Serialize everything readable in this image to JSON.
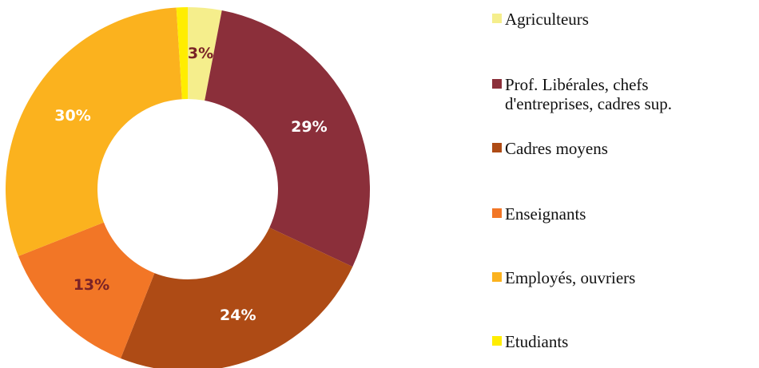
{
  "chart_data": {
    "type": "donut",
    "categories": [
      "Agriculteurs",
      "Prof. Libérales, chefs d'entreprises, cadres sup.",
      "Cadres moyens",
      "Enseignants",
      "Employés, ouvriers",
      "Etudiants"
    ],
    "series": [
      {
        "values": [
          3,
          29,
          24,
          13,
          30,
          1
        ],
        "value_labels": [
          "3%",
          "29%",
          "24%",
          "13%",
          "30%",
          null
        ],
        "colors": [
          "#f5ee8c",
          "#8b2f3a",
          "#ae4b15",
          "#f27626",
          "#fbb21e",
          "#ffed00"
        ],
        "label_colors": [
          "#7a2226",
          "#ffffff",
          "#ffffff",
          "#7a2226",
          "#ffffff",
          "#ffffff"
        ]
      }
    ],
    "legend": "right"
  }
}
